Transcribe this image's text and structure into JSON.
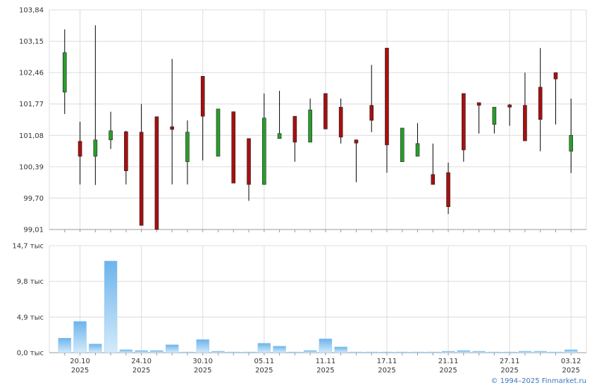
{
  "chart_data": [
    {
      "type": "candlestick",
      "open": [
        102.03,
        100.95,
        100.62,
        100.98,
        101.16,
        101.15,
        101.49,
        101.27,
        100.5,
        102.38,
        100.62,
        101.6,
        101.01,
        100.0,
        101.01,
        101.5,
        100.93,
        102.0,
        101.7,
        100.98,
        101.74,
        103.0,
        100.5,
        100.62,
        100.22,
        100.26,
        102.0,
        101.8,
        101.32,
        101.75,
        101.74,
        102.14,
        102.46,
        100.73
      ],
      "high": [
        103.41,
        101.38,
        103.5,
        101.6,
        101.18,
        101.77,
        101.49,
        102.76,
        101.41,
        102.38,
        101.66,
        101.6,
        101.01,
        102.0,
        102.06,
        101.5,
        101.89,
        102.0,
        101.89,
        100.99,
        102.63,
        103.0,
        101.24,
        101.35,
        100.9,
        100.48,
        102.0,
        101.8,
        101.7,
        101.77,
        102.46,
        103.0,
        102.46,
        101.89
      ],
      "low": [
        101.55,
        100.0,
        99.99,
        100.78,
        100.0,
        99.1,
        99.01,
        100.0,
        100.0,
        100.53,
        100.62,
        100.03,
        99.64,
        100.0,
        101.01,
        100.5,
        100.93,
        101.22,
        100.9,
        100.05,
        101.15,
        100.26,
        100.5,
        100.62,
        100.0,
        99.35,
        100.5,
        101.12,
        101.12,
        101.29,
        100.96,
        100.73,
        101.32,
        100.25
      ],
      "close": [
        102.9,
        100.62,
        100.98,
        101.18,
        100.3,
        99.1,
        99.01,
        101.21,
        101.15,
        101.5,
        101.66,
        100.03,
        100.0,
        101.46,
        101.12,
        100.93,
        101.64,
        101.22,
        101.04,
        100.91,
        101.41,
        100.87,
        101.24,
        100.9,
        100.0,
        99.51,
        100.76,
        101.74,
        101.7,
        101.7,
        100.96,
        101.43,
        102.32,
        101.08
      ],
      "up_color": "#2a9d2a",
      "down_color": "#a80f0f",
      "ylim": [
        99.01,
        103.84
      ],
      "yticks": [
        {
          "value": 99.01,
          "label": "99,01"
        },
        {
          "value": 99.7,
          "label": "99,70"
        },
        {
          "value": 100.39,
          "label": "100,39"
        },
        {
          "value": 101.08,
          "label": "101,08"
        },
        {
          "value": 101.77,
          "label": "101,77"
        },
        {
          "value": 102.46,
          "label": "102,46"
        },
        {
          "value": 103.15,
          "label": "103,15"
        },
        {
          "value": 103.84,
          "label": "103,84"
        }
      ],
      "grid": true
    },
    {
      "type": "bar",
      "categories": [
        null,
        "20.10\n2025",
        null,
        null,
        null,
        "24.10\n2025",
        null,
        null,
        null,
        "30.10\n2025",
        null,
        null,
        null,
        "05.11\n2025",
        null,
        null,
        null,
        "11.11\n2025",
        null,
        null,
        null,
        "17.11\n2025",
        null,
        null,
        null,
        "21.11\n2025",
        null,
        null,
        null,
        "27.11\n2025",
        null,
        null,
        null,
        "03.12\n2025"
      ],
      "values": [
        2.0,
        4.3,
        1.2,
        12.6,
        0.4,
        0.3,
        0.3,
        1.1,
        0.1,
        1.8,
        0.2,
        0.1,
        0.1,
        1.3,
        0.9,
        0.1,
        0.3,
        1.9,
        0.8,
        0.1,
        0.1,
        0.1,
        0.1,
        0.1,
        0.1,
        0.2,
        0.3,
        0.2,
        0.1,
        0.1,
        0.2,
        0.2,
        0.1,
        0.4
      ],
      "color": "#7fbfee",
      "ylim": [
        0,
        14.7
      ],
      "yticks": [
        {
          "value": 0,
          "label": "0,0 тыс"
        },
        {
          "value": 4.9,
          "label": "4,9 тыс"
        },
        {
          "value": 9.8,
          "label": "9,8 тыс"
        },
        {
          "value": 14.7,
          "label": "14,7 тыс"
        }
      ],
      "grid": true
    }
  ],
  "footer": "© 1994–2025 Finmarket.ru"
}
